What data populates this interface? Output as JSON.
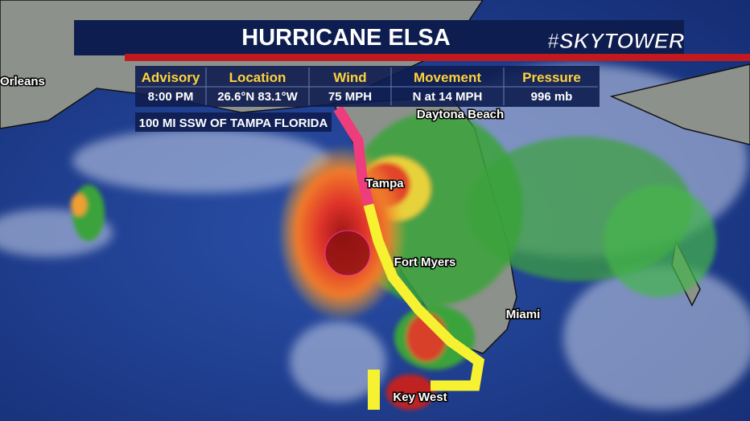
{
  "header": {
    "title": "HURRICANE ELSA",
    "logo": "#SKYTOWER"
  },
  "advisory": {
    "columns": [
      {
        "label": "Advisory",
        "value": "8:00 PM"
      },
      {
        "label": "Location",
        "value": "26.6°N  83.1°W"
      },
      {
        "label": "Wind",
        "value": "75 MPH"
      },
      {
        "label": "Movement",
        "value": "N at 14 MPH"
      },
      {
        "label": "Pressure",
        "value": "996 mb"
      }
    ],
    "note": "100 MI SSW OF TAMPA FLORIDA"
  },
  "map": {
    "labels": [
      {
        "label": "Orleans"
      },
      {
        "label": "Daytona Beach"
      },
      {
        "label": "Tampa"
      },
      {
        "label": "Fort Myers"
      },
      {
        "label": "Miami"
      },
      {
        "label": "Key West"
      }
    ]
  }
}
